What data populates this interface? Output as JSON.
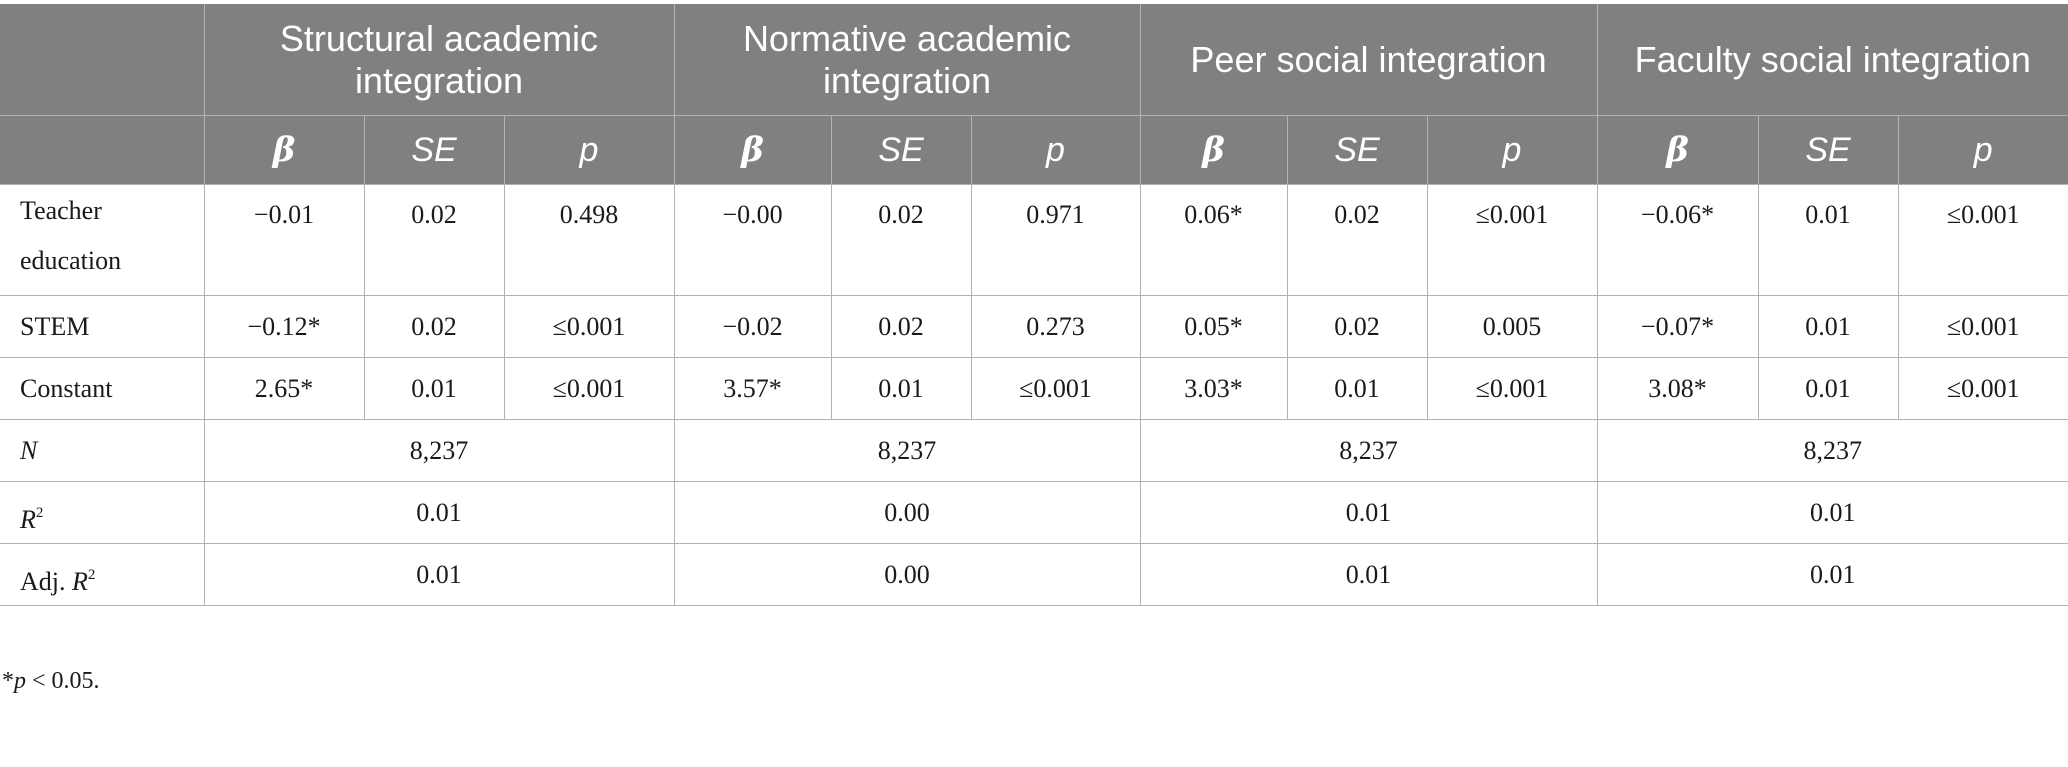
{
  "header": {
    "groups": [
      "Structural academic integration",
      "Normative academic integration",
      "Peer social integration",
      "Faculty social integration"
    ],
    "sub": {
      "beta": "β",
      "se": "SE",
      "p": "p"
    }
  },
  "rows": {
    "teacher": {
      "label": "Teacher education",
      "cells": [
        "−0.01",
        "0.02",
        "0.498",
        "−0.00",
        "0.02",
        "0.971",
        "0.06*",
        "0.02",
        "≤0.001",
        "−0.06*",
        "0.01",
        "≤0.001"
      ]
    },
    "stem": {
      "label": "STEM",
      "cells": [
        "−0.12*",
        "0.02",
        "≤0.001",
        "−0.02",
        "0.02",
        "0.273",
        "0.05*",
        "0.02",
        "0.005",
        "−0.07*",
        "0.01",
        "≤0.001"
      ]
    },
    "constant": {
      "label": "Constant",
      "cells": [
        "2.65*",
        "0.01",
        "≤0.001",
        "3.57*",
        "0.01",
        "≤0.001",
        "3.03*",
        "0.01",
        "≤0.001",
        "3.08*",
        "0.01",
        "≤0.001"
      ]
    },
    "n": {
      "label": "N",
      "cells": [
        "8,237",
        "8,237",
        "8,237",
        "8,237"
      ]
    },
    "r2": {
      "label_base": "R",
      "label_sup": "2",
      "cells": [
        "0.01",
        "0.00",
        "0.01",
        "0.01"
      ]
    },
    "adjr2": {
      "label_base": "Adj. ",
      "label_r": "R",
      "label_sup": "2",
      "cells": [
        "0.01",
        "0.00",
        "0.01",
        "0.01"
      ]
    }
  },
  "footnote": {
    "mark": "*",
    "p": "p",
    "rest": " < 0.05."
  }
}
